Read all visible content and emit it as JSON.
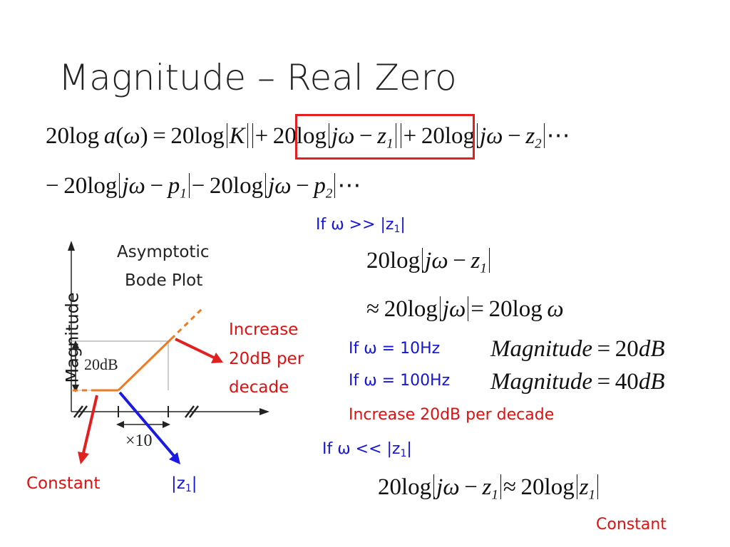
{
  "title": "Magnitude – Real Zero",
  "chart": {
    "header_line1": "Asymptotic",
    "header_line2": "Bode Plot",
    "ylabel": "Magnitude",
    "step_label": "20dB",
    "ratio_label": "×10",
    "annotation_increase_1": "Increase",
    "annotation_increase_2": "20dB per",
    "annotation_increase_3": "decade",
    "constant_label": "Constant",
    "zero_label": "|z",
    "zero_sub": "1",
    "zero_close": "|"
  },
  "conditions": {
    "high_prefix": "If ω >> |z",
    "high_sub": "1",
    "high_suffix": "|",
    "f10": "If ω = 10Hz",
    "f100": "If ω = 100Hz",
    "increase": "Increase 20dB per decade",
    "low_prefix": "If ω << |z",
    "low_sub": "1",
    "low_suffix": "|",
    "constant": "Constant"
  },
  "colors": {
    "orange": "#ee7a22",
    "blue": "#1a1ae0",
    "red": "#e32020",
    "grid": "#bbbbbb"
  }
}
